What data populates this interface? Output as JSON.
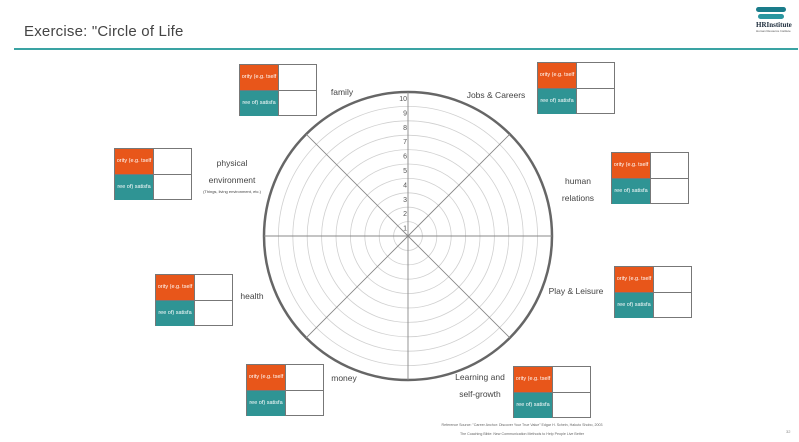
{
  "header": {
    "title": "Exercise: \"Circle of Life",
    "logo_name": "HRInstitute",
    "logo_tagline": "Human Resource Institute"
  },
  "wheel": {
    "scale": [
      "1",
      "2",
      "3",
      "4",
      "5",
      "6",
      "7",
      "8",
      "9",
      "10"
    ]
  },
  "segments": [
    {
      "key": "family",
      "label": "family",
      "priority": "ority (e.g. tself",
      "satisfaction": "ree of) satisfa"
    },
    {
      "key": "jobs",
      "label": "Jobs & Careers",
      "priority": "ority (e.g. tself",
      "satisfaction": "ree of) satisfa"
    },
    {
      "key": "human",
      "label_line1": "human",
      "label_line2": "relations",
      "priority": "ority (e.g. tself",
      "satisfaction": "ree of) satisfa"
    },
    {
      "key": "play",
      "label": "Play & Leisure",
      "priority": "ority (e.g. tself",
      "satisfaction": "ree of) satisfa"
    },
    {
      "key": "learning",
      "label_line1": "Learning and",
      "label_line2": "self-growth",
      "priority": "ority (e.g. tself",
      "satisfaction": "ree of) satisfa"
    },
    {
      "key": "money",
      "label": "money",
      "priority": "ority (e.g. tself",
      "satisfaction": "ree of) satisfa"
    },
    {
      "key": "health",
      "label": "health",
      "priority": "ority (e.g. tself",
      "satisfaction": "ree of) satisfa"
    },
    {
      "key": "physical",
      "label_line1": "physical",
      "label_line2": "environment",
      "label_note": "(Things, living environment, etc.)",
      "priority": "ority (e.g. tself",
      "satisfaction": "ree of) satisfa"
    }
  ],
  "footer": {
    "reference_1": "Reference Source: \"Career Anchor: Discover Your True Value\" Edgar H. Schein, Hakuto Shobo, 2003",
    "reference_2": "The Coaching Bible: New Communication Methods to Help People Live Better",
    "page_number": "32"
  }
}
